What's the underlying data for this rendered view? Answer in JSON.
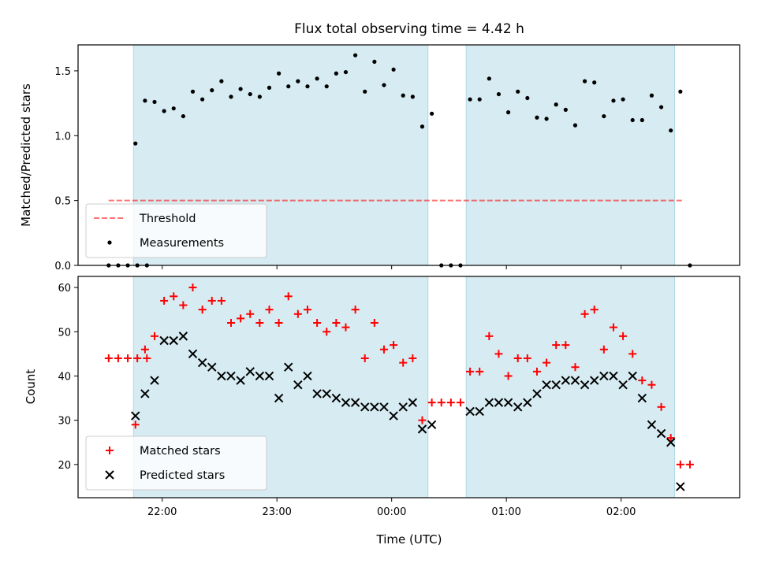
{
  "chart_data": [
    {
      "type": "scatter",
      "title": "Flux total observing time = 4.42 h",
      "xlabel": "",
      "ylabel": "Matched/Predicted stars",
      "ylim": [
        0,
        1.7
      ],
      "yticks": [
        "0.0",
        "0.5",
        "1.0",
        "1.5"
      ],
      "xticks": [
        "22:00",
        "23:00",
        "00:00",
        "01:00",
        "02:00"
      ],
      "xlim": [
        "21:16",
        "03:02"
      ],
      "shaded_intervals": [
        [
          "21:45",
          "00:19"
        ],
        [
          "00:39",
          "02:28"
        ]
      ],
      "shade_color": "#add8e6",
      "threshold": {
        "name": "Threshold",
        "value": 0.5,
        "x_range": [
          "21:32",
          "02:32"
        ],
        "color": "#ff0000",
        "style": "dashed"
      },
      "series": [
        {
          "name": "Measurements",
          "color": "#000000",
          "points": [
            [
              "21:32",
              0
            ],
            [
              "21:37",
              0
            ],
            [
              "21:42",
              0
            ],
            [
              "21:47",
              0
            ],
            [
              "21:52",
              0
            ],
            [
              "21:46",
              0.94
            ],
            [
              "21:51",
              1.27
            ],
            [
              "21:56",
              1.26
            ],
            [
              "22:01",
              1.19
            ],
            [
              "22:06",
              1.21
            ],
            [
              "22:11",
              1.15
            ],
            [
              "22:16",
              1.34
            ],
            [
              "22:21",
              1.28
            ],
            [
              "22:26",
              1.35
            ],
            [
              "22:31",
              1.42
            ],
            [
              "22:36",
              1.3
            ],
            [
              "22:41",
              1.36
            ],
            [
              "22:46",
              1.32
            ],
            [
              "22:51",
              1.3
            ],
            [
              "22:56",
              1.37
            ],
            [
              "23:01",
              1.48
            ],
            [
              "23:06",
              1.38
            ],
            [
              "23:11",
              1.42
            ],
            [
              "23:16",
              1.38
            ],
            [
              "23:21",
              1.44
            ],
            [
              "23:26",
              1.38
            ],
            [
              "23:31",
              1.48
            ],
            [
              "23:36",
              1.49
            ],
            [
              "23:41",
              1.62
            ],
            [
              "23:46",
              1.34
            ],
            [
              "23:51",
              1.57
            ],
            [
              "23:56",
              1.39
            ],
            [
              "00:01",
              1.51
            ],
            [
              "00:06",
              1.31
            ],
            [
              "00:11",
              1.3
            ],
            [
              "00:16",
              1.07
            ],
            [
              "00:21",
              1.17
            ],
            [
              "00:26",
              0
            ],
            [
              "00:31",
              0
            ],
            [
              "00:36",
              0
            ],
            [
              "00:41",
              1.28
            ],
            [
              "00:46",
              1.28
            ],
            [
              "00:51",
              1.44
            ],
            [
              "00:56",
              1.32
            ],
            [
              "01:01",
              1.18
            ],
            [
              "01:06",
              1.34
            ],
            [
              "01:11",
              1.29
            ],
            [
              "01:16",
              1.14
            ],
            [
              "01:21",
              1.13
            ],
            [
              "01:26",
              1.24
            ],
            [
              "01:31",
              1.2
            ],
            [
              "01:36",
              1.08
            ],
            [
              "01:41",
              1.42
            ],
            [
              "01:46",
              1.41
            ],
            [
              "01:51",
              1.15
            ],
            [
              "01:56",
              1.27
            ],
            [
              "02:01",
              1.28
            ],
            [
              "02:06",
              1.12
            ],
            [
              "02:11",
              1.12
            ],
            [
              "02:16",
              1.31
            ],
            [
              "02:21",
              1.22
            ],
            [
              "02:26",
              1.04
            ],
            [
              "02:31",
              1.34
            ],
            [
              "02:36",
              0
            ]
          ]
        }
      ],
      "legend": {
        "position": "lower-left",
        "entries": [
          "Threshold",
          "Measurements"
        ]
      }
    },
    {
      "type": "scatter",
      "title": "",
      "xlabel": "Time (UTC)",
      "ylabel": "Count",
      "ylim": [
        12.5,
        62.5
      ],
      "yticks": [
        "20",
        "30",
        "40",
        "50",
        "60"
      ],
      "xticks": [
        "22:00",
        "23:00",
        "00:00",
        "01:00",
        "02:00"
      ],
      "xlim": [
        "21:16",
        "03:02"
      ],
      "shaded_intervals": [
        [
          "21:45",
          "00:19"
        ],
        [
          "00:39",
          "02:28"
        ]
      ],
      "shade_color": "#add8e6",
      "series": [
        {
          "name": "Matched stars",
          "marker": "+",
          "color": "#ff0000",
          "points": [
            [
              "21:32",
              44
            ],
            [
              "21:37",
              44
            ],
            [
              "21:42",
              44
            ],
            [
              "21:47",
              44
            ],
            [
              "21:52",
              44
            ],
            [
              "21:46",
              29
            ],
            [
              "21:51",
              46
            ],
            [
              "21:56",
              49
            ],
            [
              "22:01",
              57
            ],
            [
              "22:06",
              58
            ],
            [
              "22:11",
              56
            ],
            [
              "22:16",
              60
            ],
            [
              "22:21",
              55
            ],
            [
              "22:26",
              57
            ],
            [
              "22:31",
              57
            ],
            [
              "22:36",
              52
            ],
            [
              "22:41",
              53
            ],
            [
              "22:46",
              54
            ],
            [
              "22:51",
              52
            ],
            [
              "22:56",
              55
            ],
            [
              "23:01",
              52
            ],
            [
              "23:06",
              58
            ],
            [
              "23:11",
              54
            ],
            [
              "23:16",
              55
            ],
            [
              "23:21",
              52
            ],
            [
              "23:26",
              50
            ],
            [
              "23:31",
              52
            ],
            [
              "23:36",
              51
            ],
            [
              "23:41",
              55
            ],
            [
              "23:46",
              44
            ],
            [
              "23:51",
              52
            ],
            [
              "23:56",
              46
            ],
            [
              "00:01",
              47
            ],
            [
              "00:06",
              43
            ],
            [
              "00:11",
              44
            ],
            [
              "00:16",
              30
            ],
            [
              "00:21",
              34
            ],
            [
              "00:26",
              34
            ],
            [
              "00:31",
              34
            ],
            [
              "00:36",
              34
            ],
            [
              "00:41",
              41
            ],
            [
              "00:46",
              41
            ],
            [
              "00:51",
              49
            ],
            [
              "00:56",
              45
            ],
            [
              "01:01",
              40
            ],
            [
              "01:06",
              44
            ],
            [
              "01:11",
              44
            ],
            [
              "01:16",
              41
            ],
            [
              "01:21",
              43
            ],
            [
              "01:26",
              47
            ],
            [
              "01:31",
              47
            ],
            [
              "01:36",
              42
            ],
            [
              "01:41",
              54
            ],
            [
              "01:46",
              55
            ],
            [
              "01:51",
              46
            ],
            [
              "01:56",
              51
            ],
            [
              "02:01",
              49
            ],
            [
              "02:06",
              45
            ],
            [
              "02:11",
              39
            ],
            [
              "02:16",
              38
            ],
            [
              "02:21",
              33
            ],
            [
              "02:26",
              26
            ],
            [
              "02:31",
              20
            ],
            [
              "02:36",
              20
            ]
          ]
        },
        {
          "name": "Predicted stars",
          "marker": "x",
          "color": "#000000",
          "points": [
            [
              "21:46",
              31
            ],
            [
              "21:51",
              36
            ],
            [
              "21:56",
              39
            ],
            [
              "22:01",
              48
            ],
            [
              "22:06",
              48
            ],
            [
              "22:11",
              49
            ],
            [
              "22:16",
              45
            ],
            [
              "22:21",
              43
            ],
            [
              "22:26",
              42
            ],
            [
              "22:31",
              40
            ],
            [
              "22:36",
              40
            ],
            [
              "22:41",
              39
            ],
            [
              "22:46",
              41
            ],
            [
              "22:51",
              40
            ],
            [
              "22:56",
              40
            ],
            [
              "23:01",
              35
            ],
            [
              "23:06",
              42
            ],
            [
              "23:11",
              38
            ],
            [
              "23:16",
              40
            ],
            [
              "23:21",
              36
            ],
            [
              "23:26",
              36
            ],
            [
              "23:31",
              35
            ],
            [
              "23:36",
              34
            ],
            [
              "23:41",
              34
            ],
            [
              "23:46",
              33
            ],
            [
              "23:51",
              33
            ],
            [
              "23:56",
              33
            ],
            [
              "00:01",
              31
            ],
            [
              "00:06",
              33
            ],
            [
              "00:11",
              34
            ],
            [
              "00:16",
              28
            ],
            [
              "00:21",
              29
            ],
            [
              "00:41",
              32
            ],
            [
              "00:46",
              32
            ],
            [
              "00:51",
              34
            ],
            [
              "00:56",
              34
            ],
            [
              "01:01",
              34
            ],
            [
              "01:06",
              33
            ],
            [
              "01:11",
              34
            ],
            [
              "01:16",
              36
            ],
            [
              "01:21",
              38
            ],
            [
              "01:26",
              38
            ],
            [
              "01:31",
              39
            ],
            [
              "01:36",
              39
            ],
            [
              "01:41",
              38
            ],
            [
              "01:46",
              39
            ],
            [
              "01:51",
              40
            ],
            [
              "01:56",
              40
            ],
            [
              "02:01",
              38
            ],
            [
              "02:06",
              40
            ],
            [
              "02:11",
              35
            ],
            [
              "02:16",
              29
            ],
            [
              "02:21",
              27
            ],
            [
              "02:26",
              25
            ],
            [
              "02:31",
              15
            ]
          ]
        }
      ],
      "legend": {
        "position": "lower-left",
        "entries": [
          "Matched stars",
          "Predicted stars"
        ]
      }
    }
  ]
}
